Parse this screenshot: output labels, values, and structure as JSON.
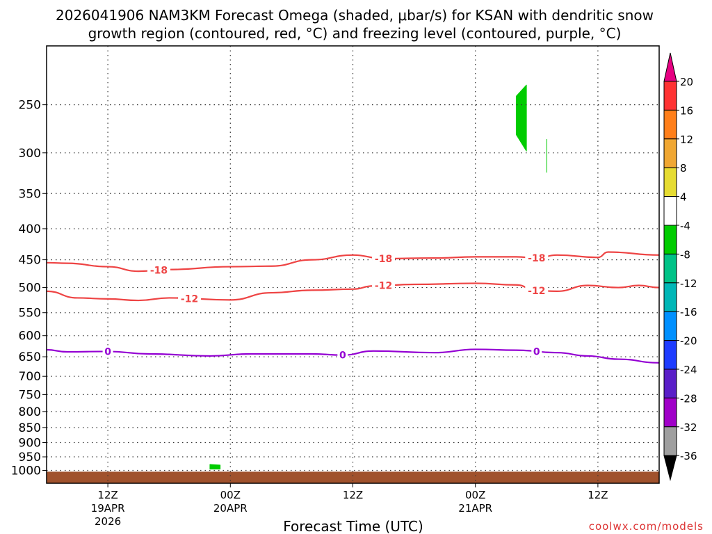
{
  "chart_data": {
    "type": "time-height cross-section",
    "title_line1": "2026041906 NAM3KM Forecast Omega (shaded, μbar/s) for KSAN with dendritic snow",
    "title_line2": "growth region (contoured, red, °C) and freezing level (contoured, purple, °C)",
    "xlabel": "Forecast Time (UTC)",
    "ylabel": "",
    "credit": "coolwx.com/models",
    "y_axis": {
      "scale": "log-pressure",
      "units": "hPa",
      "range": [
        1050,
        200
      ],
      "ticks": [
        250,
        300,
        350,
        400,
        450,
        500,
        550,
        600,
        650,
        700,
        750,
        800,
        850,
        900,
        950,
        1000
      ]
    },
    "x_axis": {
      "range": [
        "2026-04-19 06Z",
        "2026-04-21 18Z"
      ],
      "ticks": [
        {
          "hour": "2026-04-19 12Z",
          "label": "12Z",
          "date": "19APR",
          "year": "2026"
        },
        {
          "hour": "2026-04-20 00Z",
          "label": "00Z",
          "date": "20APR",
          "year": ""
        },
        {
          "hour": "2026-04-20 12Z",
          "label": "12Z",
          "date": "",
          "year": ""
        },
        {
          "hour": "2026-04-21 00Z",
          "label": "00Z",
          "date": "21APR",
          "year": ""
        },
        {
          "hour": "2026-04-21 12Z",
          "label": "12Z",
          "date": "",
          "year": ""
        }
      ],
      "grid": true
    },
    "colorbar": {
      "labels": [
        "20",
        "16",
        "12",
        "8",
        "4",
        "-4",
        "-8",
        "-12",
        "-16",
        "-20",
        "-24",
        "-28",
        "-32",
        "-36"
      ],
      "colors": [
        "#ff3333",
        "#ff7f1a",
        "#f0a733",
        "#e6dc32",
        "#ffffff",
        "#00cc00",
        "#00c387",
        "#00b7b7",
        "#0090ff",
        "#1e3cff",
        "#5a1ec8",
        "#a000c8",
        "#9f9f9f"
      ],
      "over_color": "#e60082",
      "under_color": "#000000"
    },
    "contours": [
      {
        "name": "dendritic snow growth",
        "level": -18,
        "color": "#ee4444",
        "label_times": [
          "2026-04-19 17Z",
          "2026-04-20 15Z",
          "2026-04-21 06Z"
        ],
        "points": [
          [
            "2026-04-19 06Z",
            455
          ],
          [
            "2026-04-19 08Z",
            456
          ],
          [
            "2026-04-19 12Z",
            462
          ],
          [
            "2026-04-19 15Z",
            470
          ],
          [
            "2026-04-19 18Z",
            467
          ],
          [
            "2026-04-20 00Z",
            462
          ],
          [
            "2026-04-20 04Z",
            461
          ],
          [
            "2026-04-20 08Z",
            450
          ],
          [
            "2026-04-20 12Z",
            442
          ],
          [
            "2026-04-20 15Z",
            448
          ],
          [
            "2026-04-20 20Z",
            447
          ],
          [
            "2026-04-21 00Z",
            445
          ],
          [
            "2026-04-21 04Z",
            445
          ],
          [
            "2026-04-21 06Z",
            447
          ],
          [
            "2026-04-21 08Z",
            442
          ],
          [
            "2026-04-21 12Z",
            446
          ],
          [
            "2026-04-21 13Z",
            437
          ],
          [
            "2026-04-21 18Z",
            442
          ]
        ]
      },
      {
        "name": "dendritic snow growth",
        "level": -12,
        "color": "#ee4444",
        "label_times": [
          "2026-04-19 20Z",
          "2026-04-20 15Z",
          "2026-04-21 06Z"
        ],
        "points": [
          [
            "2026-04-19 06Z",
            507
          ],
          [
            "2026-04-19 09Z",
            520
          ],
          [
            "2026-04-19 12Z",
            522
          ],
          [
            "2026-04-19 15Z",
            525
          ],
          [
            "2026-04-19 18Z",
            520
          ],
          [
            "2026-04-20 00Z",
            524
          ],
          [
            "2026-04-20 04Z",
            510
          ],
          [
            "2026-04-20 08Z",
            505
          ],
          [
            "2026-04-20 12Z",
            503
          ],
          [
            "2026-04-20 14Z",
            497
          ],
          [
            "2026-04-20 18Z",
            494
          ],
          [
            "2026-04-21 00Z",
            492
          ],
          [
            "2026-04-21 04Z",
            495
          ],
          [
            "2026-04-21 06Z",
            506
          ],
          [
            "2026-04-21 08Z",
            507
          ],
          [
            "2026-04-21 11Z",
            496
          ],
          [
            "2026-04-21 14Z",
            500
          ],
          [
            "2026-04-21 16Z",
            496
          ],
          [
            "2026-04-21 18Z",
            500
          ]
        ]
      },
      {
        "name": "freezing level",
        "level": 0,
        "color": "#9400d3",
        "label_times": [
          "2026-04-19 12Z",
          "2026-04-20 11Z",
          "2026-04-21 06Z"
        ],
        "points": [
          [
            "2026-04-19 06Z",
            633
          ],
          [
            "2026-04-19 08Z",
            638
          ],
          [
            "2026-04-19 12Z",
            637
          ],
          [
            "2026-04-19 16Z",
            643
          ],
          [
            "2026-04-19 22Z",
            648
          ],
          [
            "2026-04-20 02Z",
            643
          ],
          [
            "2026-04-20 08Z",
            643
          ],
          [
            "2026-04-20 11Z",
            646
          ],
          [
            "2026-04-20 14Z",
            636
          ],
          [
            "2026-04-20 20Z",
            640
          ],
          [
            "2026-04-21 00Z",
            632
          ],
          [
            "2026-04-21 04Z",
            634
          ],
          [
            "2026-04-21 08Z",
            640
          ],
          [
            "2026-04-21 11Z",
            648
          ],
          [
            "2026-04-21 14Z",
            656
          ],
          [
            "2026-04-21 18Z",
            665
          ]
        ]
      }
    ],
    "omega_regions": [
      {
        "value_range": [
          -8,
          -4
        ],
        "color": "#00cc00",
        "points": [
          [
            "2026-04-21 04Z",
            242
          ],
          [
            "2026-04-21 05Z",
            232
          ],
          [
            "2026-04-21 05Z",
            260
          ],
          [
            "2026-04-21 05Z",
            298
          ],
          [
            "2026-04-21 04Z",
            280
          ],
          [
            "2026-04-21 04Z",
            262
          ]
        ]
      },
      {
        "value_range": [
          -8,
          -4
        ],
        "color": "#00cc00",
        "points": [
          [
            "2026-04-21 07Z",
            285
          ],
          [
            "2026-04-21 07Z",
            295
          ],
          [
            "2026-04-21 07Z",
            323
          ],
          [
            "2026-04-21 07Z",
            305
          ]
        ]
      },
      {
        "value_range": [
          -8,
          -4
        ],
        "color": "#00cc00",
        "points": [
          [
            "2026-04-19 22Z",
            978
          ],
          [
            "2026-04-19 23Z",
            980
          ],
          [
            "2026-04-19 23Z",
            995
          ],
          [
            "2026-04-19 22Z",
            995
          ]
        ]
      }
    ],
    "terrain": {
      "color": "#a0522d",
      "surface_pressure": 1005
    }
  }
}
